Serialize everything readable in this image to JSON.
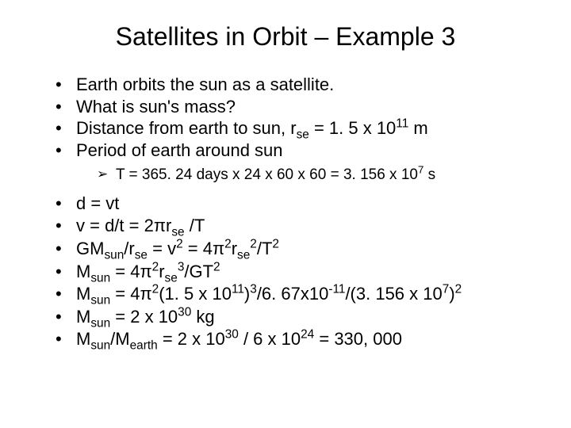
{
  "title": "Satellites in Orbit – Example 3",
  "colors": {
    "background": "#ffffff",
    "text": "#000000"
  },
  "typography": {
    "title_fontsize": 32,
    "bullet_fontsize": 22,
    "subbullet_fontsize": 19,
    "font_family": "Arial"
  },
  "top_bullets": [
    {
      "html": "Earth orbits the sun as a satellite."
    },
    {
      "html": "What is sun's mass?"
    },
    {
      "html": "Distance from earth to sun, r<sub>se</sub> = 1. 5 x 10<sup>11</sup> m"
    },
    {
      "html": "Period of earth around sun"
    }
  ],
  "sub_bullets": [
    {
      "html": "T = 365. 24 days x 24 x 60 x 60 = 3. 156 x 10<sup>7</sup> s"
    }
  ],
  "bottom_bullets": [
    {
      "html": "d = vt"
    },
    {
      "html": "v = d/t = 2&#960;r<sub>se</sub> /T"
    },
    {
      "html": "GM<sub>sun</sub>/r<sub>se</sub> = v<sup>2</sup> = 4&#960;<sup>2</sup>r<sub>se</sub><sup>2</sup>/T<sup>2</sup>"
    },
    {
      "html": "M<sub>sun</sub> = 4&#960;<sup>2</sup>r<sub>se</sub><sup>3</sup>/GT<sup>2</sup>"
    },
    {
      "html": "M<sub>sun</sub> = 4&#960;<sup>2</sup>(1. 5 x 10<sup>11</sup>)<sup>3</sup>/6. 67x10<sup>-11</sup>/(3. 156 x 10<sup>7</sup>)<sup>2</sup>"
    },
    {
      "html": "M<sub>sun</sub> = 2 x 10<sup>30</sup> kg"
    },
    {
      "html": "M<sub>sun</sub>/M<sub>earth</sub> = 2 x 10<sup>30</sup> / 6 x 10<sup>24</sup> = 330, 000"
    }
  ]
}
